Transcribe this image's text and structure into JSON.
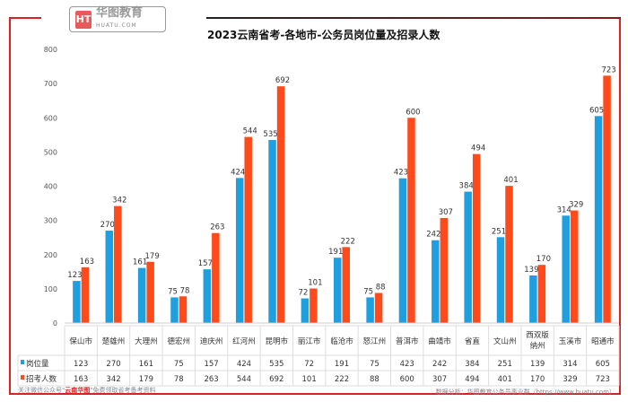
{
  "logo": {
    "text": "华图教育",
    "sub": "HUATU.COM"
  },
  "chart_data": {
    "type": "bar",
    "title": "2023云南省考-各地市-公务员岗位量及招录人数",
    "categories": [
      "保山市",
      "楚雄州",
      "大理州",
      "德宏州",
      "迪庆州",
      "红河州",
      "昆明市",
      "丽江市",
      "临沧市",
      "怒江州",
      "普洱市",
      "曲靖市",
      "省直",
      "文山州",
      "西双版纳州",
      "玉溪市",
      "昭通市"
    ],
    "series": [
      {
        "name": "岗位量",
        "color": "#1e9fe0",
        "values": [
          123,
          270,
          161,
          75,
          157,
          424,
          535,
          72,
          191,
          75,
          423,
          242,
          384,
          251,
          139,
          314,
          605
        ]
      },
      {
        "name": "招考人数",
        "color": "#ff4a1c",
        "values": [
          163,
          342,
          179,
          78,
          263,
          544,
          692,
          101,
          222,
          88,
          600,
          307,
          494,
          401,
          170,
          329,
          723
        ]
      }
    ],
    "ylim": [
      0,
      800
    ],
    "yticks": [
      0,
      100,
      200,
      300,
      400,
      500,
      600,
      700,
      800
    ],
    "grid": false,
    "legend": "data-table-left"
  },
  "footer": {
    "left_prefix": "关注微信公众号\"",
    "left_highlight": "云南华图",
    "left_suffix": "\"免费领取省考备考资料",
    "right": "数据分析：华图教育公务员事业群（https://www.huatu.com）"
  }
}
